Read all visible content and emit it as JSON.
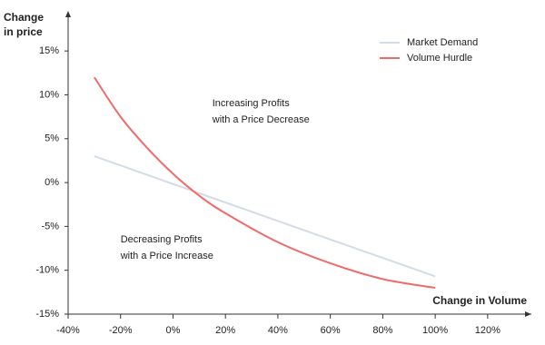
{
  "chart_data": {
    "type": "line",
    "ylabel": [
      "Change",
      "in price"
    ],
    "xlabel": "Change in Volume",
    "annotations": [
      {
        "lines": [
          "Increasing Profits",
          "with a Price Decrease"
        ],
        "x": 15,
        "y": 9
      },
      {
        "lines": [
          "Decreasing Profits",
          "with a Price Increase"
        ],
        "x": -20,
        "y": -6.5
      }
    ],
    "x": [
      -30,
      -20,
      -10,
      0,
      10,
      20,
      40,
      60,
      80,
      100
    ],
    "series": [
      {
        "name": "Market Demand",
        "color": "#d3dce6",
        "values": [
          3,
          1.95,
          0.89,
          -0.16,
          -1.22,
          -2.27,
          -4.38,
          -6.49,
          -8.59,
          -10.7
        ]
      },
      {
        "name": "Volume Hurdle",
        "color": "#ef6b6b",
        "values": [
          12,
          7.5,
          4,
          1,
          -1.5,
          -3.5,
          -6.8,
          -9.2,
          -11,
          -12
        ]
      }
    ],
    "xlim": [
      -40,
      132
    ],
    "ylim": [
      -15,
      19
    ],
    "xticks": [
      {
        "value": -40,
        "label": "-40%"
      },
      {
        "value": -20,
        "label": "-20%"
      },
      {
        "value": 0,
        "label": "0%"
      },
      {
        "value": 20,
        "label": "20%"
      },
      {
        "value": 40,
        "label": "40%"
      },
      {
        "value": 60,
        "label": "60%"
      },
      {
        "value": 80,
        "label": "80%"
      },
      {
        "value": 100,
        "label": "100%"
      },
      {
        "value": 120,
        "label": "120%"
      }
    ],
    "yticks": [
      {
        "value": -15,
        "label": "-15%"
      },
      {
        "value": -10,
        "label": "-10%"
      },
      {
        "value": -5,
        "label": "-5%"
      },
      {
        "value": 0,
        "label": "0%"
      },
      {
        "value": 5,
        "label": "5%"
      },
      {
        "value": 10,
        "label": "10%"
      },
      {
        "value": 15,
        "label": "15%"
      }
    ],
    "legend": "top-right",
    "grid": false
  }
}
